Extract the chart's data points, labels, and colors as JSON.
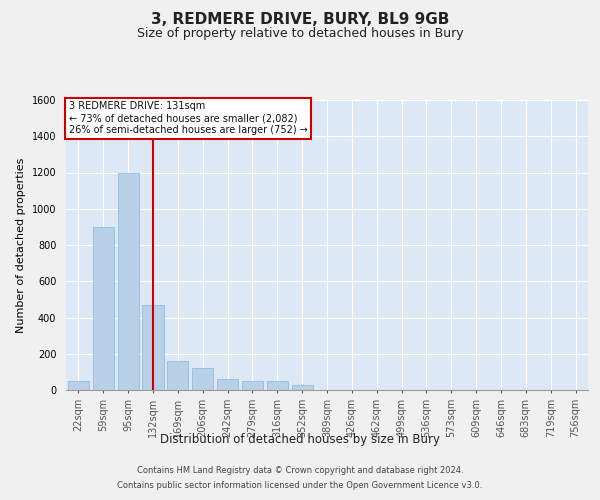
{
  "title1": "3, REDMERE DRIVE, BURY, BL9 9GB",
  "title2": "Size of property relative to detached houses in Bury",
  "xlabel": "Distribution of detached houses by size in Bury",
  "ylabel": "Number of detached properties",
  "categories": [
    "22sqm",
    "59sqm",
    "95sqm",
    "132sqm",
    "169sqm",
    "206sqm",
    "242sqm",
    "279sqm",
    "316sqm",
    "352sqm",
    "389sqm",
    "426sqm",
    "462sqm",
    "499sqm",
    "536sqm",
    "573sqm",
    "609sqm",
    "646sqm",
    "683sqm",
    "719sqm",
    "756sqm"
  ],
  "values": [
    50,
    900,
    1200,
    470,
    160,
    120,
    60,
    50,
    50,
    30,
    0,
    0,
    0,
    0,
    0,
    0,
    0,
    0,
    0,
    0,
    0
  ],
  "bar_color": "#b8d0e8",
  "bar_edge_color": "#8ab4d4",
  "fig_bg_color": "#f0f0f0",
  "plot_bg_color": "#dce8f5",
  "grid_color": "#ffffff",
  "vline_color": "#cc0000",
  "vline_x_index": 3,
  "annotation_line1": "3 REDMERE DRIVE: 131sqm",
  "annotation_line2": "← 73% of detached houses are smaller (2,082)",
  "annotation_line3": "26% of semi-detached houses are larger (752) →",
  "ann_box_color": "#cc0000",
  "ylim": [
    0,
    1600
  ],
  "yticks": [
    0,
    200,
    400,
    600,
    800,
    1000,
    1200,
    1400,
    1600
  ],
  "footer_line1": "Contains HM Land Registry data © Crown copyright and database right 2024.",
  "footer_line2": "Contains public sector information licensed under the Open Government Licence v3.0.",
  "title1_fs": 11,
  "title2_fs": 9,
  "ylabel_fs": 8,
  "xlabel_fs": 8.5,
  "tick_fs": 7,
  "ann_fs": 7,
  "footer_fs": 6
}
